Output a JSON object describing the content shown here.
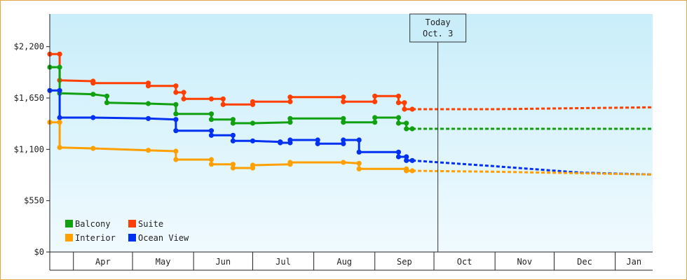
{
  "chart_data": {
    "type": "line",
    "title": "",
    "xlabel": "",
    "ylabel": "",
    "y_ticks": [
      0,
      550,
      1100,
      1650,
      2200
    ],
    "y_tick_labels": [
      "$0",
      "$550",
      "$1,100",
      "$1,650",
      "$2,200"
    ],
    "ylim": [
      0,
      2550
    ],
    "xlim": [
      "2015-03-20",
      "2016-01-20"
    ],
    "months": [
      {
        "label": "Apr",
        "start": "2015-04-01",
        "end": "2015-05-01"
      },
      {
        "label": "May",
        "start": "2015-05-01",
        "end": "2015-06-01"
      },
      {
        "label": "Jun",
        "start": "2015-06-01",
        "end": "2015-07-01"
      },
      {
        "label": "Jul",
        "start": "2015-07-01",
        "end": "2015-08-01"
      },
      {
        "label": "Aug",
        "start": "2015-08-01",
        "end": "2015-09-01"
      },
      {
        "label": "Sep",
        "start": "2015-09-01",
        "end": "2015-10-01"
      },
      {
        "label": "Oct",
        "start": "2015-10-01",
        "end": "2015-11-01"
      },
      {
        "label": "Nov",
        "start": "2015-11-01",
        "end": "2015-12-01"
      },
      {
        "label": "Dec",
        "start": "2015-12-01",
        "end": "2016-01-01"
      },
      {
        "label": "Jan",
        "start": "2016-01-01",
        "end": "2016-01-20"
      }
    ],
    "today": {
      "label_line1": "Today",
      "label_line2": "Oct. 3",
      "date": "2015-10-03"
    },
    "legend_position": "bottom-left",
    "grid": false,
    "series": [
      {
        "name": "Suite",
        "color": "#ff3f00",
        "points": [
          [
            "2015-03-20",
            2120
          ],
          [
            "2015-03-25",
            2120
          ],
          [
            "2015-03-25",
            1840
          ],
          [
            "2015-04-11",
            1830
          ],
          [
            "2015-04-11",
            1810
          ],
          [
            "2015-05-09",
            1810
          ],
          [
            "2015-05-09",
            1780
          ],
          [
            "2015-05-23",
            1780
          ],
          [
            "2015-05-23",
            1710
          ],
          [
            "2015-05-27",
            1710
          ],
          [
            "2015-05-27",
            1640
          ],
          [
            "2015-06-10",
            1640
          ],
          [
            "2015-06-16",
            1640
          ],
          [
            "2015-06-16",
            1580
          ],
          [
            "2015-07-01",
            1580
          ],
          [
            "2015-07-01",
            1610
          ],
          [
            "2015-07-20",
            1610
          ],
          [
            "2015-07-20",
            1660
          ],
          [
            "2015-08-16",
            1660
          ],
          [
            "2015-08-16",
            1610
          ],
          [
            "2015-09-01",
            1610
          ],
          [
            "2015-09-01",
            1670
          ],
          [
            "2015-09-13",
            1670
          ],
          [
            "2015-09-13",
            1600
          ],
          [
            "2015-09-16",
            1600
          ],
          [
            "2015-09-16",
            1530
          ],
          [
            "2015-09-20",
            1530
          ]
        ],
        "forecast": [
          [
            "2015-09-20",
            1530
          ],
          [
            "2015-10-31",
            1530
          ],
          [
            "2016-01-20",
            1550
          ]
        ]
      },
      {
        "name": "Balcony",
        "color": "#10a010",
        "points": [
          [
            "2015-03-20",
            1980
          ],
          [
            "2015-03-25",
            1980
          ],
          [
            "2015-03-25",
            1700
          ],
          [
            "2015-04-11",
            1690
          ],
          [
            "2015-04-18",
            1670
          ],
          [
            "2015-04-18",
            1600
          ],
          [
            "2015-05-09",
            1590
          ],
          [
            "2015-05-23",
            1580
          ],
          [
            "2015-05-23",
            1480
          ],
          [
            "2015-06-10",
            1480
          ],
          [
            "2015-06-10",
            1420
          ],
          [
            "2015-06-21",
            1420
          ],
          [
            "2015-06-21",
            1380
          ],
          [
            "2015-07-01",
            1380
          ],
          [
            "2015-07-20",
            1390
          ],
          [
            "2015-07-20",
            1430
          ],
          [
            "2015-08-16",
            1430
          ],
          [
            "2015-08-16",
            1390
          ],
          [
            "2015-09-01",
            1390
          ],
          [
            "2015-09-01",
            1440
          ],
          [
            "2015-09-13",
            1440
          ],
          [
            "2015-09-13",
            1380
          ],
          [
            "2015-09-17",
            1380
          ],
          [
            "2015-09-17",
            1320
          ],
          [
            "2015-09-20",
            1320
          ]
        ],
        "forecast": [
          [
            "2015-09-20",
            1320
          ],
          [
            "2016-01-20",
            1320
          ]
        ]
      },
      {
        "name": "Ocean View",
        "color": "#0030f0",
        "points": [
          [
            "2015-03-20",
            1730
          ],
          [
            "2015-03-25",
            1730
          ],
          [
            "2015-03-25",
            1440
          ],
          [
            "2015-04-11",
            1440
          ],
          [
            "2015-05-09",
            1430
          ],
          [
            "2015-05-23",
            1420
          ],
          [
            "2015-05-23",
            1300
          ],
          [
            "2015-06-10",
            1300
          ],
          [
            "2015-06-10",
            1250
          ],
          [
            "2015-06-21",
            1250
          ],
          [
            "2015-06-21",
            1190
          ],
          [
            "2015-07-01",
            1190
          ],
          [
            "2015-07-15",
            1180
          ],
          [
            "2015-07-15",
            1170
          ],
          [
            "2015-07-20",
            1170
          ],
          [
            "2015-07-20",
            1200
          ],
          [
            "2015-08-03",
            1200
          ],
          [
            "2015-08-03",
            1160
          ],
          [
            "2015-08-16",
            1160
          ],
          [
            "2015-08-16",
            1200
          ],
          [
            "2015-08-24",
            1200
          ],
          [
            "2015-08-24",
            1070
          ],
          [
            "2015-09-13",
            1070
          ],
          [
            "2015-09-13",
            1020
          ],
          [
            "2015-09-17",
            1020
          ],
          [
            "2015-09-17",
            980
          ],
          [
            "2015-09-20",
            980
          ]
        ],
        "forecast": [
          [
            "2015-09-20",
            980
          ],
          [
            "2015-10-31",
            920
          ],
          [
            "2015-12-15",
            850
          ],
          [
            "2016-01-20",
            830
          ]
        ]
      },
      {
        "name": "Interior",
        "color": "#ffa000",
        "points": [
          [
            "2015-03-20",
            1390
          ],
          [
            "2015-03-25",
            1390
          ],
          [
            "2015-03-25",
            1120
          ],
          [
            "2015-04-11",
            1110
          ],
          [
            "2015-05-09",
            1090
          ],
          [
            "2015-05-23",
            1080
          ],
          [
            "2015-05-23",
            990
          ],
          [
            "2015-06-10",
            990
          ],
          [
            "2015-06-10",
            940
          ],
          [
            "2015-06-21",
            940
          ],
          [
            "2015-06-21",
            900
          ],
          [
            "2015-07-01",
            900
          ],
          [
            "2015-07-01",
            930
          ],
          [
            "2015-07-20",
            940
          ],
          [
            "2015-07-20",
            960
          ],
          [
            "2015-08-16",
            960
          ],
          [
            "2015-08-24",
            950
          ],
          [
            "2015-08-24",
            890
          ],
          [
            "2015-09-17",
            890
          ],
          [
            "2015-09-17",
            870
          ],
          [
            "2015-09-20",
            870
          ]
        ],
        "forecast": [
          [
            "2015-09-20",
            870
          ],
          [
            "2015-10-31",
            860
          ],
          [
            "2016-01-20",
            830
          ]
        ]
      }
    ],
    "legend": [
      {
        "name": "Balcony",
        "color": "#10a010"
      },
      {
        "name": "Suite",
        "color": "#ff3f00"
      },
      {
        "name": "Interior",
        "color": "#ffa000"
      },
      {
        "name": "Ocean View",
        "color": "#0030f0"
      }
    ]
  }
}
